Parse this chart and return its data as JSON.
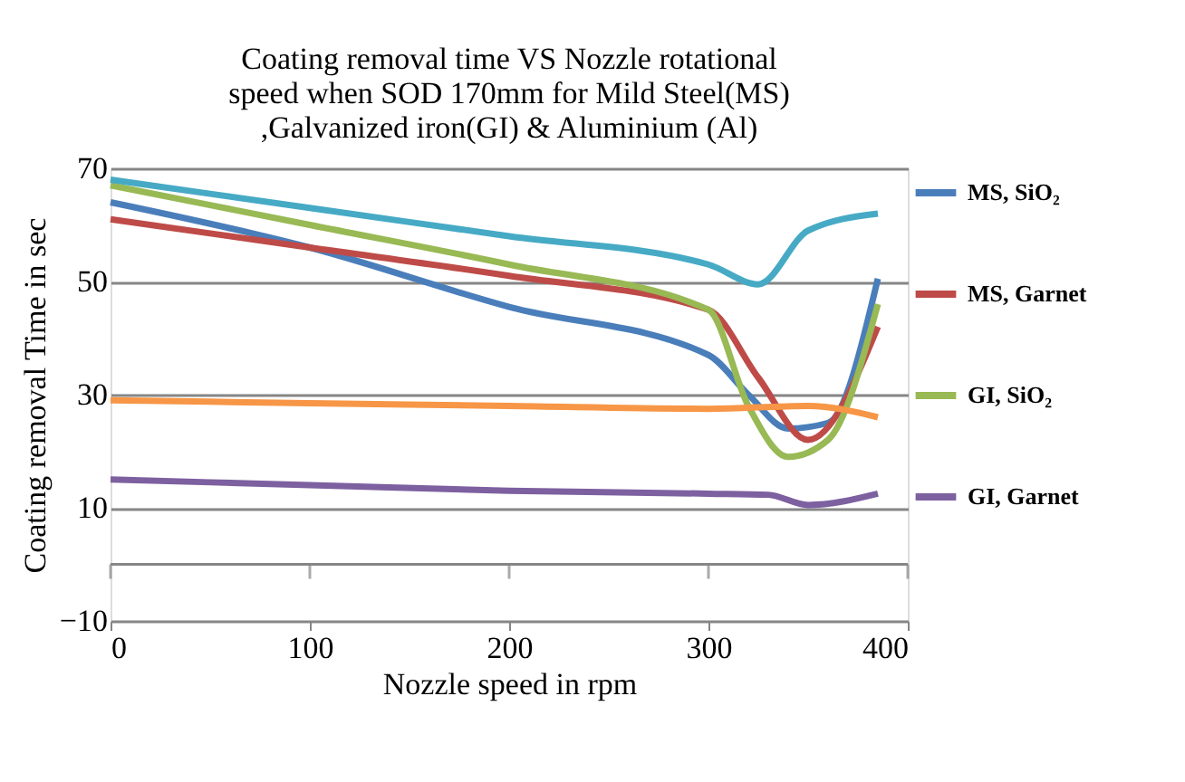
{
  "chart_data": {
    "type": "line",
    "title": [
      "Coating removal time VS Nozzle rotational",
      "speed when SOD 170mm for Mild Steel(MS)",
      ",Galvanized iron(GI) & Aluminium (Al)"
    ],
    "xlabel": "Nozzle speed in rpm",
    "ylabel": "Coating removal Time  in sec",
    "series": [
      {
        "name": "MS, SiO₂",
        "color": "#4a7ebb",
        "x": [
          0,
          100,
          200,
          300,
          320,
          340,
          360,
          385
        ],
        "values": [
          64,
          56,
          45.5,
          37,
          30,
          24,
          25,
          50.5
        ]
      },
      {
        "name": "MS, Garnet",
        "color": "#be4b48",
        "x": [
          0,
          100,
          200,
          300,
          325,
          350,
          385
        ],
        "values": [
          61,
          56,
          51,
          45,
          33,
          22,
          42
        ]
      },
      {
        "name": "GI, SiO₂",
        "color": "#98b954",
        "x": [
          0,
          100,
          200,
          300,
          320,
          340,
          360,
          385
        ],
        "values": [
          67,
          60,
          53,
          45,
          28,
          19,
          22,
          46
        ]
      },
      {
        "name": "GI, Garnet",
        "color": "#7d60a0",
        "x": [
          0,
          100,
          200,
          300,
          330,
          350,
          385
        ],
        "values": [
          15,
          14,
          13,
          12.5,
          12.3,
          10.5,
          12.5
        ]
      },
      {
        "color": "#46aac5",
        "x": [
          0,
          100,
          200,
          300,
          325,
          350,
          385
        ],
        "values": [
          68,
          63,
          58,
          53,
          49.5,
          59,
          62
        ]
      },
      {
        "color": "#f79646",
        "x": [
          0,
          100,
          200,
          300,
          350,
          385
        ],
        "values": [
          29,
          28.5,
          28,
          27.5,
          28,
          26
        ]
      }
    ],
    "xlim": [
      0,
      400
    ],
    "xticks": [
      0,
      100,
      200,
      300,
      400
    ],
    "ylim": [
      -10,
      70
    ],
    "yticks": [
      -10,
      10,
      30,
      50,
      70
    ],
    "ref_lines": [
      {
        "axis": "y",
        "value": 0,
        "color": "#868686"
      }
    ],
    "grid": "y",
    "legend": "right",
    "marker": "none",
    "line_style": "solid"
  }
}
